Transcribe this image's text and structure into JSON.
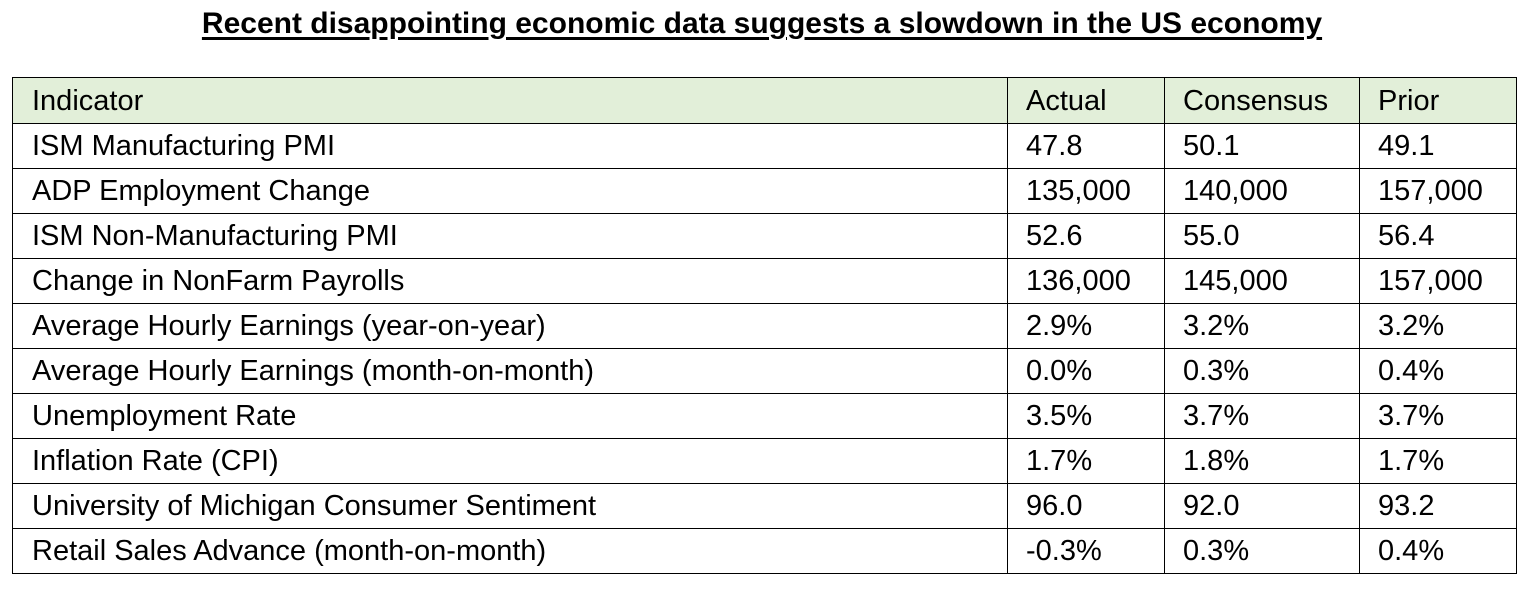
{
  "title": "Recent disappointing economic data suggests a slowdown in the US economy",
  "colors": {
    "header_background": "#e2efd9",
    "border": "#000000",
    "text": "#000000"
  },
  "chart_data": {
    "type": "table",
    "title": "Recent disappointing economic data suggests a slowdown in the US economy",
    "columns": [
      "Indicator",
      "Actual",
      "Consensus",
      "Prior"
    ],
    "rows": [
      [
        "ISM Manufacturing PMI",
        "47.8",
        "50.1",
        "49.1"
      ],
      [
        "ADP Employment Change",
        "135,000",
        "140,000",
        "157,000"
      ],
      [
        "ISM Non-Manufacturing PMI",
        "52.6",
        "55.0",
        "56.4"
      ],
      [
        "Change in NonFarm Payrolls",
        "136,000",
        "145,000",
        "157,000"
      ],
      [
        "Average Hourly Earnings (year-on-year)",
        "2.9%",
        "3.2%",
        "3.2%"
      ],
      [
        "Average Hourly Earnings (month-on-month)",
        "0.0%",
        "0.3%",
        "0.4%"
      ],
      [
        "Unemployment Rate",
        "3.5%",
        "3.7%",
        "3.7%"
      ],
      [
        "Inflation Rate (CPI)",
        "1.7%",
        "1.8%",
        "1.7%"
      ],
      [
        "University of Michigan Consumer Sentiment",
        "96.0",
        "92.0",
        "93.2"
      ],
      [
        "Retail Sales Advance (month-on-month)",
        "-0.3%",
        "0.3%",
        "0.4%"
      ]
    ]
  }
}
